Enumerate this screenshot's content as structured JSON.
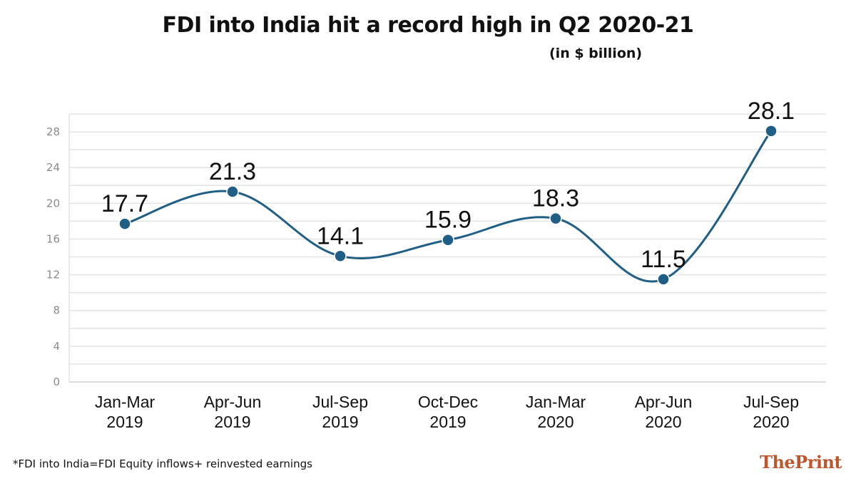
{
  "title": "FDI into India hit a record high in Q2 2020-21",
  "subtitle": "(in $ billion)",
  "footnote": "*FDI into India=FDI Equity inflows+ reinvested earnings",
  "brand": "ThePrint",
  "colors": {
    "line": "#1f5f86",
    "marker": "#1f5f86",
    "grid": "#e3e3e3",
    "axis_text": "#8a8a8a",
    "brand": "#c0542a"
  },
  "chart_data": {
    "type": "line",
    "title": "FDI into India hit a record high in Q2 2020-21",
    "subtitle": "(in $ billion)",
    "categories": [
      [
        "Jan-Mar",
        "2019"
      ],
      [
        "Apr-Jun",
        "2019"
      ],
      [
        "Jul-Sep",
        "2019"
      ],
      [
        "Oct-Dec",
        "2019"
      ],
      [
        "Jan-Mar",
        "2020"
      ],
      [
        "Apr-Jun",
        "2020"
      ],
      [
        "Jul-Sep",
        "2020"
      ]
    ],
    "values": [
      17.7,
      21.3,
      14.1,
      15.9,
      18.3,
      11.5,
      28.1
    ],
    "data_labels": [
      "17.7",
      "21.3",
      "14.1",
      "15.9",
      "18.3",
      "11.5",
      "28.1"
    ],
    "y_ticks": [
      0,
      4,
      8,
      12,
      16,
      20,
      24,
      28
    ],
    "ylim": [
      0,
      30
    ],
    "xlabel": "",
    "ylabel": "",
    "grid": true,
    "smooth": true
  }
}
